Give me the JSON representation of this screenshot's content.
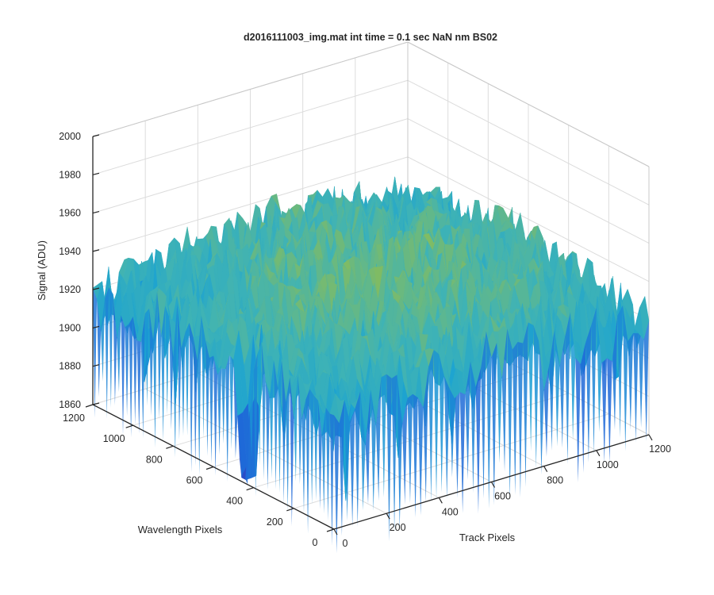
{
  "chart_data": {
    "type": "surface",
    "title": "d2016111003_img.mat int time = 0.1 sec  NaN nm BS02",
    "xlabel": "Track Pixels",
    "ylabel": "Wavelength Pixels",
    "zlabel": "Signal (ADU)",
    "xlim": [
      0,
      1200
    ],
    "ylim": [
      0,
      1200
    ],
    "zlim": [
      1860,
      2000
    ],
    "x_ticks": [
      0,
      200,
      400,
      600,
      800,
      1000,
      1200
    ],
    "y_ticks": [
      0,
      200,
      400,
      600,
      800,
      1000,
      1200
    ],
    "z_ticks": [
      1860,
      1880,
      1900,
      1920,
      1940,
      1960,
      1980,
      2000
    ],
    "grid": true,
    "colormap": "parula",
    "colors": {
      "low": "#1f63d8",
      "mid": "#3fb3b5",
      "high": "#e8c03e",
      "axis": "#262626",
      "grid": "#dcdcdc"
    },
    "surface": {
      "mean_level": 1922,
      "noise_amplitude": 16,
      "row_samples": [
        1915,
        1921,
        1928,
        1933,
        1937,
        1935,
        1930,
        1925,
        1920,
        1916
      ],
      "col_samples": [
        1914,
        1920,
        1926,
        1931,
        1934,
        1936,
        1933,
        1928,
        1923,
        1918
      ],
      "minimum_dip": {
        "track": 0,
        "wavelength": 450,
        "value": 1828
      }
    }
  }
}
